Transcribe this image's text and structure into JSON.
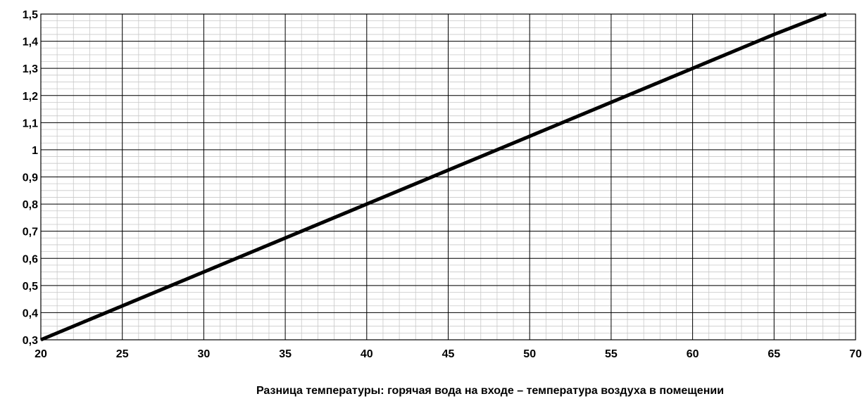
{
  "chart_data": {
    "type": "line",
    "title": "",
    "xlabel": "Разница температуры: горячая вода на входе – температура воздуха в помещении",
    "ylabel": "",
    "xlim": [
      20,
      70
    ],
    "ylim": [
      0.3,
      1.5
    ],
    "x_ticks": [
      20,
      25,
      30,
      35,
      40,
      45,
      50,
      55,
      60,
      65,
      70
    ],
    "x_tick_labels": [
      "20",
      "25",
      "30",
      "35",
      "40",
      "45",
      "50",
      "55",
      "60",
      "65",
      "70"
    ],
    "y_ticks": [
      0.3,
      0.4,
      0.5,
      0.6,
      0.7,
      0.8,
      0.9,
      1.0,
      1.1,
      1.2,
      1.3,
      1.4,
      1.5
    ],
    "y_tick_labels": [
      "0,3",
      "0,4",
      "0,5",
      "0,6",
      "0,7",
      "0,8",
      "0,9",
      "1",
      "1,1",
      "1,2",
      "1,3",
      "1,4",
      "1,5"
    ],
    "grid": true,
    "legend": "none",
    "series": [
      {
        "color": "#000000",
        "x": [
          20,
          25,
          30,
          35,
          40,
          45,
          50,
          55,
          60,
          65,
          68.2
        ],
        "y": [
          0.3,
          0.425,
          0.55,
          0.675,
          0.8,
          0.925,
          1.05,
          1.175,
          1.3,
          1.425,
          1.5
        ]
      }
    ]
  }
}
